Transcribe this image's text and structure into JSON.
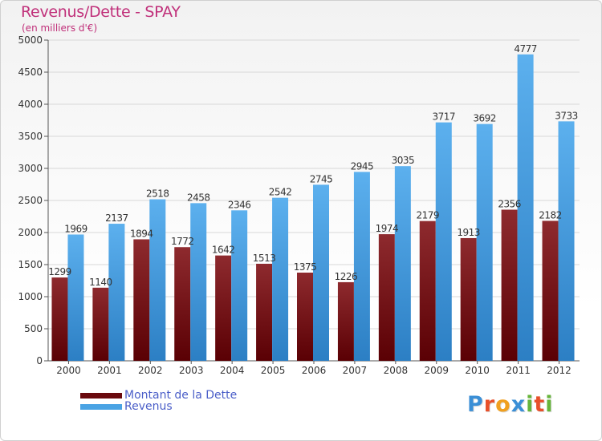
{
  "header": {
    "title": "Revenus/Dette - SPAY",
    "subtitle": "(en milliers d'€)"
  },
  "chart_data": {
    "type": "bar",
    "title": "Revenus/Dette - SPAY",
    "subtitle": "(en milliers d'€)",
    "xlabel": "",
    "ylabel": "",
    "ylim": [
      0,
      5000
    ],
    "yticks": [
      0,
      500,
      1000,
      1500,
      2000,
      2500,
      3000,
      3500,
      4000,
      4500,
      5000
    ],
    "grid": true,
    "legend_position": "bottom-left",
    "categories": [
      "2000",
      "2001",
      "2002",
      "2003",
      "2004",
      "2005",
      "2006",
      "2007",
      "2008",
      "2009",
      "2010",
      "2011",
      "2012"
    ],
    "series": [
      {
        "name": "Montant de la Dette",
        "color": "#7a1a1e",
        "values": [
          1299,
          1140,
          1894,
          1772,
          1642,
          1513,
          1375,
          1226,
          1974,
          2179,
          1913,
          2356,
          2182
        ],
        "labels": [
          "1299",
          "1140",
          "1894",
          "1772",
          "1642",
          "1513",
          "1375",
          "1226",
          "1974",
          "2179",
          "1913",
          "2356",
          "2182"
        ]
      },
      {
        "name": "Revenus",
        "color": "#4aa3e4",
        "values": [
          1969,
          2137,
          2518,
          2458,
          2346,
          2542,
          2745,
          2945,
          3035,
          3717,
          3692,
          4777,
          3733
        ],
        "labels": [
          "1969",
          "2137",
          "2518",
          "2458",
          "2346",
          "2542",
          "2745",
          "2945",
          "3035",
          "3717",
          "3692",
          "4777",
          "3733"
        ]
      }
    ]
  },
  "legend": {
    "items": [
      {
        "label": "Montant de la Dette",
        "color": "#6a0a0e"
      },
      {
        "label": "Revenus",
        "color": "#4aa3e4"
      }
    ]
  },
  "logo": {
    "letters": [
      "P",
      "r",
      "o",
      "x",
      "i",
      "t",
      "i"
    ],
    "colors": [
      "#3b8fd6",
      "#e8502a",
      "#f0a020",
      "#3b8fd6",
      "#66b53a",
      "#e8502a",
      "#66b53a"
    ]
  }
}
